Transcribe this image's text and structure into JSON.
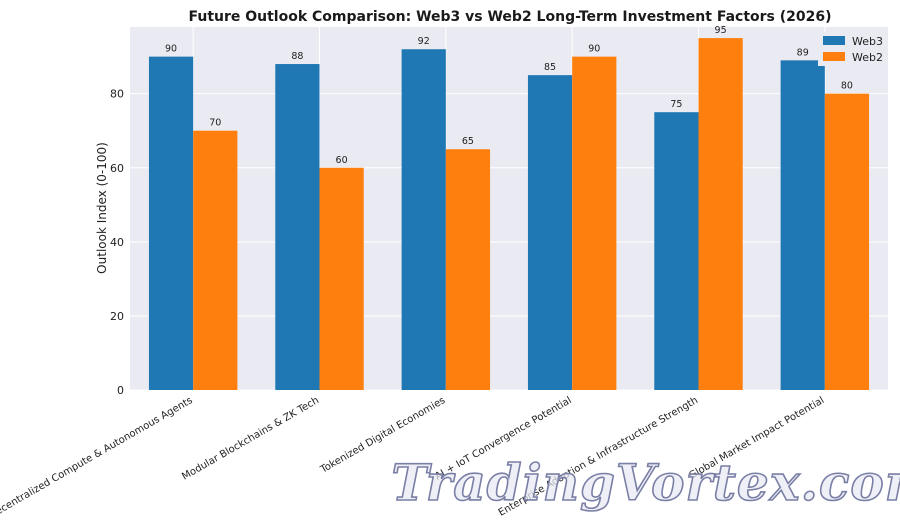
{
  "chart_data": {
    "type": "bar",
    "title": "Future Outlook Comparison: Web3 vs Web2 Long-Term Investment Factors (2026)",
    "xlabel": "",
    "ylabel": "Outlook Index (0-100)",
    "ylim": [
      0,
      98
    ],
    "yticks": [
      0,
      20,
      40,
      60,
      80
    ],
    "grid": true,
    "legend_position": "top-right",
    "categories": [
      "Decentralized Compute & Autonomous Agents",
      "Modular Blockchains & ZK Tech",
      "Tokenized Digital Economies",
      "AI + IoT Convergence Potential",
      "Enterprise Adoption & Infrastructure Strength",
      "Global Market Impact Potential"
    ],
    "series": [
      {
        "name": "Web3",
        "color": "#1f77b4",
        "values": [
          90,
          88,
          92,
          85,
          75,
          89
        ]
      },
      {
        "name": "Web2",
        "color": "#ff7f0e",
        "values": [
          70,
          60,
          65,
          90,
          95,
          80
        ]
      }
    ]
  },
  "watermark": {
    "text": "TradingVortex.com"
  },
  "colors": {
    "plot_background": "#eaeaf2",
    "grid": "#ffffff"
  }
}
